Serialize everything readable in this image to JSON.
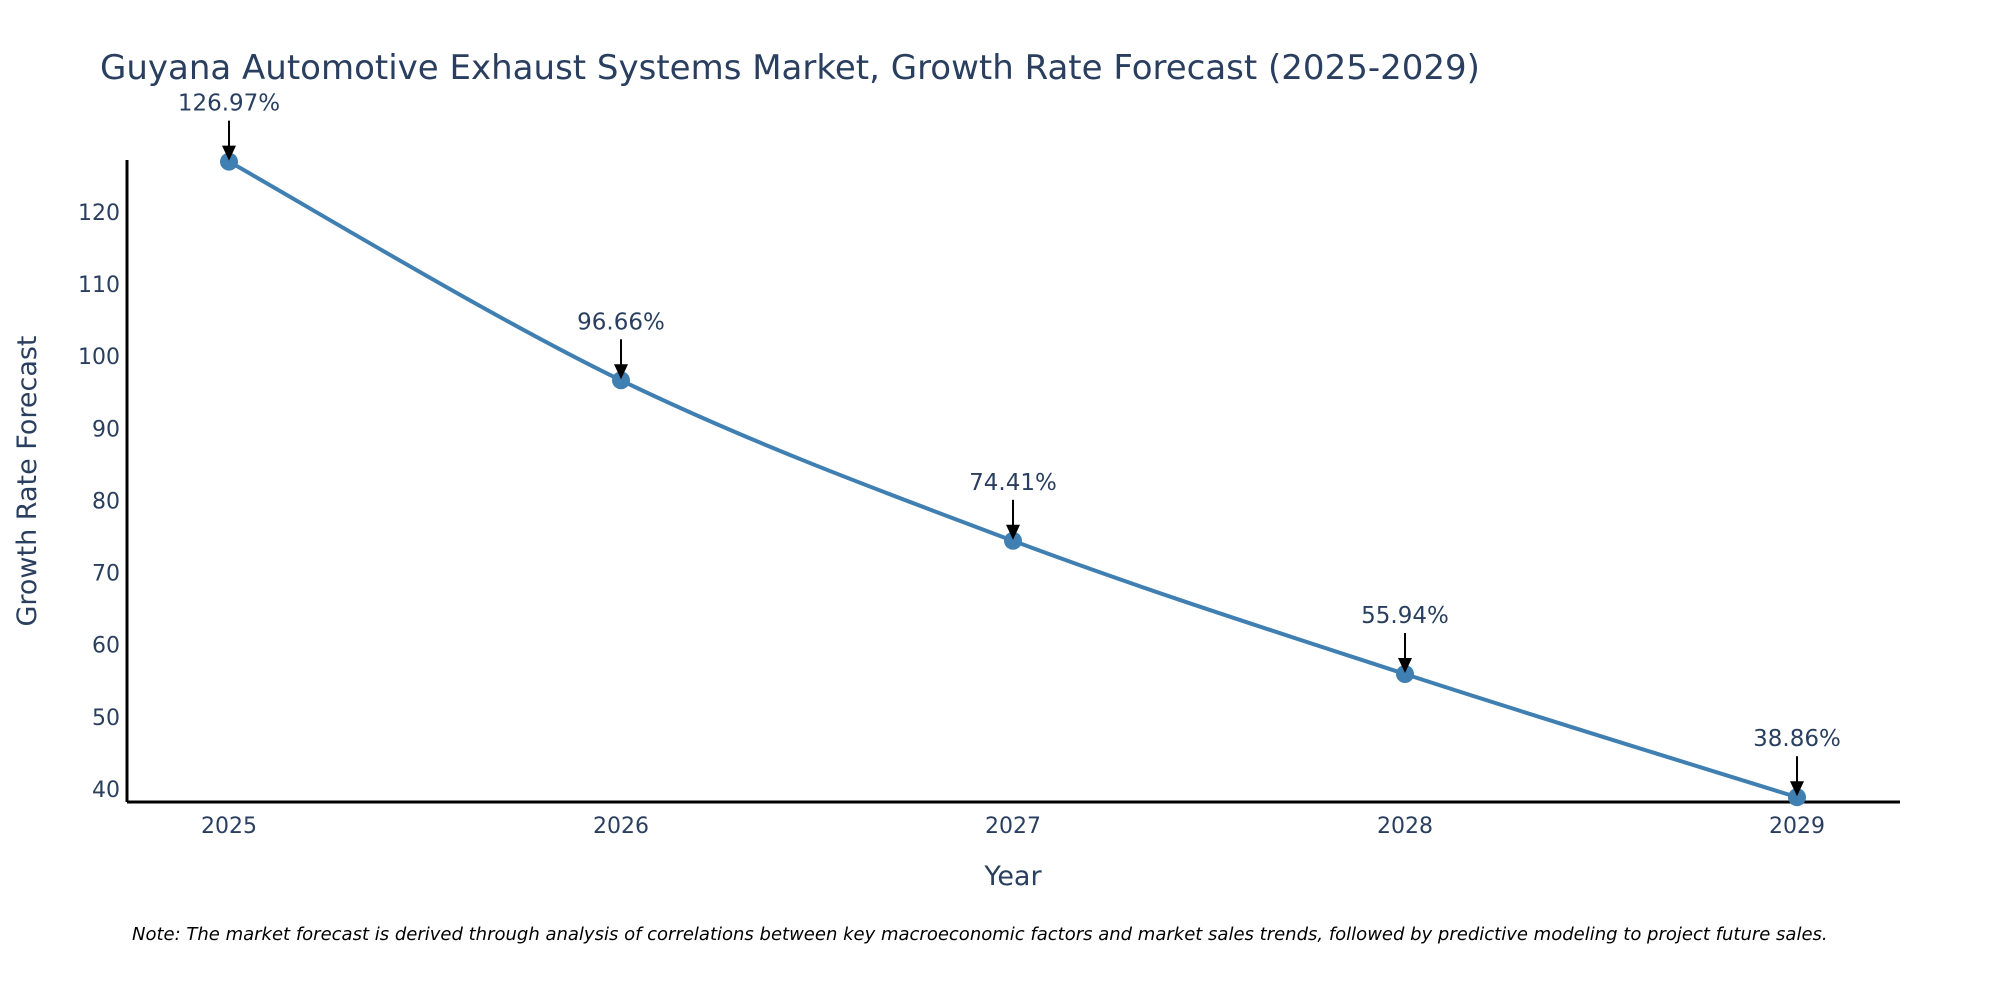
{
  "chart_data": {
    "type": "line",
    "title": "Guyana Automotive Exhaust Systems Market, Growth Rate Forecast (2025-2029)",
    "xlabel": "Year",
    "ylabel": "Growth Rate Forecast",
    "categories": [
      "2025",
      "2026",
      "2027",
      "2028",
      "2029"
    ],
    "series": [
      {
        "name": "Growth Rate Forecast",
        "values": [
          126.97,
          96.66,
          74.41,
          55.94,
          38.86
        ],
        "labels": [
          "126.97%",
          "96.66%",
          "74.41%",
          "55.94%",
          "38.86%"
        ]
      }
    ],
    "ylim": [
      38.2,
      127.2
    ],
    "yticks": [
      40,
      50,
      60,
      70,
      80,
      90,
      100,
      110,
      120
    ],
    "grid": false,
    "line_color": "#3f7fb1",
    "note": "Note: The market forecast is derived through analysis of correlations between key macroeconomic factors and market sales trends, followed by predictive modeling to project future sales."
  }
}
